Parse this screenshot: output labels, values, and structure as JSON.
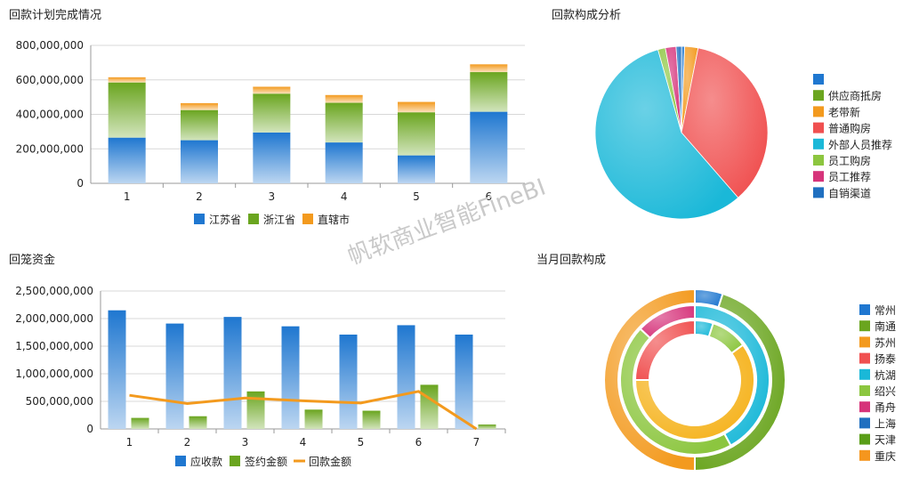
{
  "titles": {
    "plan": "回款计划完成情况",
    "composition": "回款构成分析",
    "funds": "回笼资金",
    "month": "当月回款构成"
  },
  "watermark": "帆软商业智能FineBI",
  "chart_data": [
    {
      "type": "bar",
      "stacked": true,
      "title": "回款计划完成情况",
      "categories": [
        "1",
        "2",
        "3",
        "4",
        "5",
        "6"
      ],
      "series": [
        {
          "name": "江苏省",
          "color": "#1f77d0",
          "values": [
            265000000,
            250000000,
            295000000,
            237000000,
            162000000,
            415000000
          ]
        },
        {
          "name": "浙江省",
          "color": "#6aa51f",
          "values": [
            320000000,
            175000000,
            225000000,
            230000000,
            250000000,
            230000000
          ]
        },
        {
          "name": "直辖市",
          "color": "#f39a1e",
          "values": [
            30000000,
            40000000,
            40000000,
            45000000,
            60000000,
            45000000
          ]
        }
      ],
      "yticks": [
        "0",
        "200,000,000",
        "400,000,000",
        "600,000,000",
        "800,000,000"
      ],
      "ylim": [
        0,
        800000000
      ],
      "grid": true,
      "legend": "bottom"
    },
    {
      "type": "pie",
      "title": "回款构成分析",
      "legend": "right",
      "slices": [
        {
          "name": "",
          "color": "#1f77d0",
          "value": 0.6
        },
        {
          "name": "供应商抵房",
          "color": "#6aa51f",
          "value": 0
        },
        {
          "name": "老带新",
          "color": "#f39a1e",
          "value": 2.5
        },
        {
          "name": "普通购房",
          "color": "#f05050",
          "value": 35.5
        },
        {
          "name": "外部人员推荐",
          "color": "#1ab8d8",
          "value": 57
        },
        {
          "name": "员工购房",
          "color": "#8cc63f",
          "value": 1.4
        },
        {
          "name": "员工推荐",
          "color": "#d6337a",
          "value": 2
        },
        {
          "name": "自销渠道",
          "color": "#1f6fc0",
          "value": 1
        }
      ]
    },
    {
      "type": "bar",
      "title": "回笼资金",
      "categories": [
        "1",
        "2",
        "3",
        "4",
        "5",
        "6",
        "7"
      ],
      "series": [
        {
          "name": "应收款",
          "kind": "bar",
          "color": "#1f77d0",
          "values": [
            2150000000,
            1910000000,
            2030000000,
            1860000000,
            1710000000,
            1880000000,
            1710000000
          ]
        },
        {
          "name": "签约金额",
          "kind": "bar",
          "color": "#6aa51f",
          "values": [
            200000000,
            230000000,
            680000000,
            350000000,
            330000000,
            800000000,
            80000000
          ]
        },
        {
          "name": "回款金额",
          "kind": "line",
          "color": "#f39a1e",
          "values": [
            610000000,
            460000000,
            560000000,
            510000000,
            470000000,
            680000000,
            0
          ]
        }
      ],
      "yticks": [
        "0",
        "500,000,000",
        "1,000,000,000",
        "1,500,000,000",
        "2,000,000,000",
        "2,500,000,000"
      ],
      "ylim": [
        0,
        2500000000
      ],
      "grid": true,
      "legend": "bottom"
    },
    {
      "type": "donut",
      "title": "当月回款构成",
      "legend": "right",
      "legend_items": [
        {
          "name": "常州",
          "color": "#1f77d0"
        },
        {
          "name": "南通",
          "color": "#6aa51f"
        },
        {
          "name": "苏州",
          "color": "#f39a1e"
        },
        {
          "name": "扬泰",
          "color": "#f05050"
        },
        {
          "name": "杭湖",
          "color": "#1ab8d8"
        },
        {
          "name": "绍兴",
          "color": "#8cc63f"
        },
        {
          "name": "甬舟",
          "color": "#d6337a"
        },
        {
          "name": "上海",
          "color": "#1f6fc0"
        },
        {
          "name": "天津",
          "color": "#5a9e18"
        },
        {
          "name": "重庆",
          "color": "#f5961e"
        }
      ],
      "rings": [
        {
          "ring": "outer",
          "slices": [
            {
              "name": "常州",
              "color": "#1f77d0",
              "value": 5
            },
            {
              "name": "南通",
              "color": "#6aa51f",
              "value": 45
            },
            {
              "name": "苏州",
              "color": "#f39a1e",
              "value": 50
            }
          ]
        },
        {
          "ring": "middle",
          "slices": [
            {
              "name": "杭湖",
              "color": "#1ab8d8",
              "value": 42
            },
            {
              "name": "绍兴",
              "color": "#8cc63f",
              "value": 45
            },
            {
              "name": "甬舟",
              "color": "#d6337a",
              "value": 13
            }
          ]
        },
        {
          "ring": "inner",
          "slices": [
            {
              "name": "上海",
              "color": "#1ab8d8",
              "value": 5
            },
            {
              "name": "天津",
              "color": "#8cc63f",
              "value": 10
            },
            {
              "name": "重庆",
              "color": "#f5b31e",
              "value": 60
            },
            {
              "name": "扬泰",
              "color": "#f05050",
              "value": 25
            }
          ]
        }
      ]
    }
  ]
}
